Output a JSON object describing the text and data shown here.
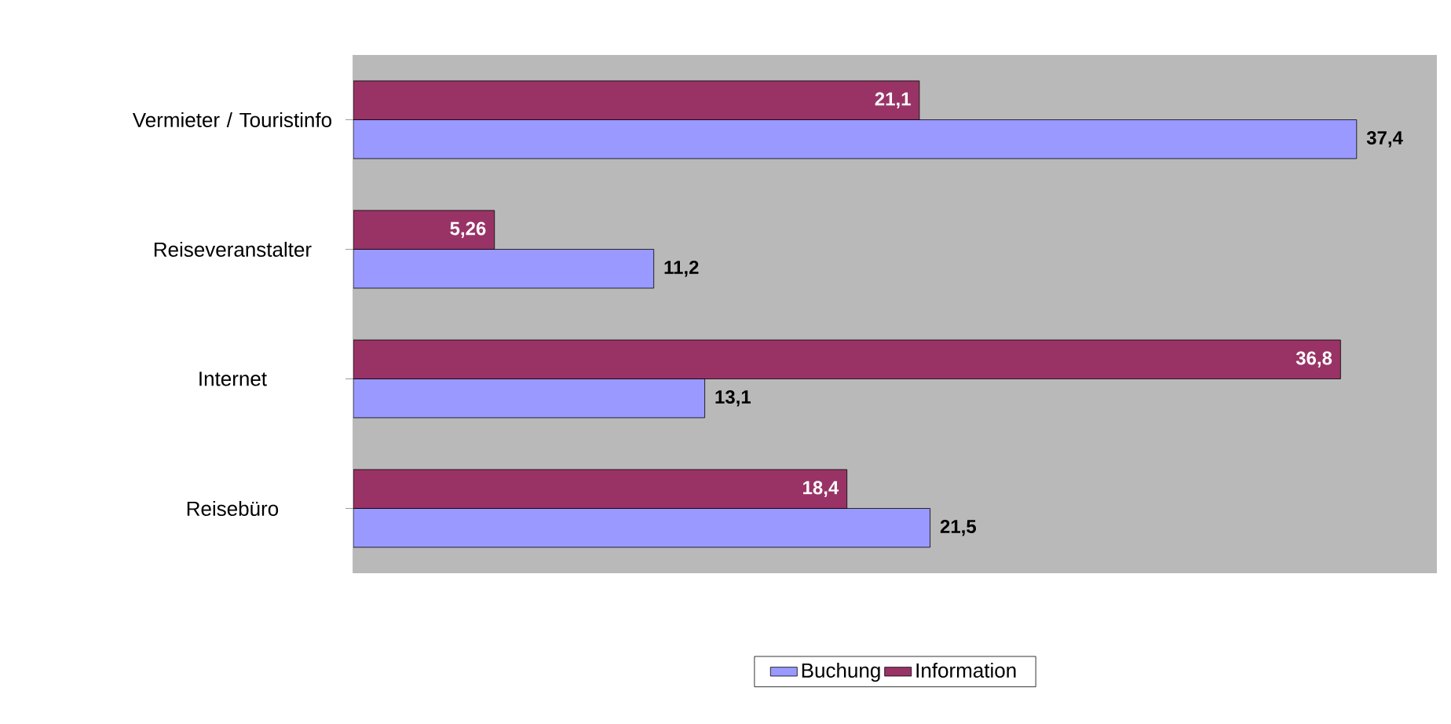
{
  "chart_data": {
    "type": "bar",
    "orientation": "horizontal",
    "categories": [
      "Vermieter / Touristinfo",
      "Reiseveranstalter",
      "Internet",
      "Reisebüro"
    ],
    "series": [
      {
        "name": "Buchung",
        "color": "#9999ff",
        "values": [
          37.4,
          11.2,
          13.1,
          21.5
        ],
        "value_labels": [
          "37,4",
          "11,2",
          "13,1",
          "21,5"
        ]
      },
      {
        "name": "Information",
        "color": "#993366",
        "values": [
          21.1,
          5.26,
          36.8,
          18.4
        ],
        "value_labels": [
          "21,1",
          "5,26",
          "36,8",
          "18,4"
        ]
      }
    ],
    "legend": "bottom",
    "tick_labels": "y"
  }
}
